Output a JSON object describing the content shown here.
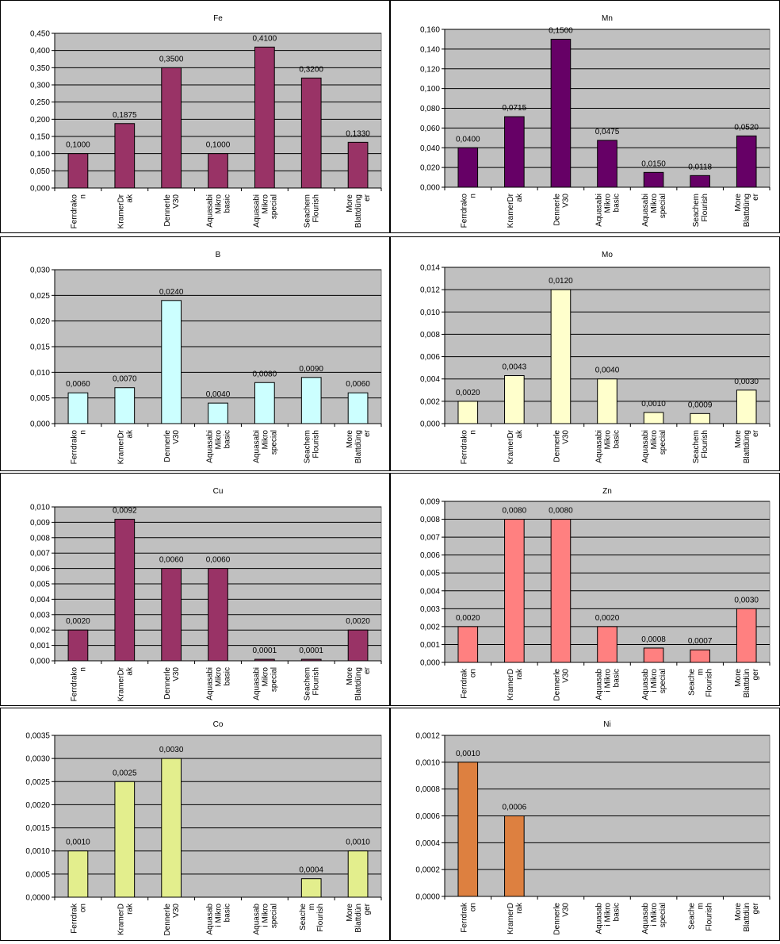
{
  "chart_data": [
    {
      "type": "bar",
      "title": "Fe",
      "categories": [
        [
          "Ferrdrako",
          "n"
        ],
        [
          "KramerDr",
          "ak"
        ],
        [
          "Dennerle",
          "V30"
        ],
        [
          "Aquasabi",
          "Mikro",
          "basic"
        ],
        [
          "Aquasabi",
          "Mikro",
          "special"
        ],
        [
          "Seachem",
          "Flourish"
        ],
        [
          "More",
          "Blattdüng",
          "er"
        ]
      ],
      "values": [
        0.1,
        0.1875,
        0.35,
        0.1,
        0.41,
        0.32,
        0.133
      ],
      "value_labels": [
        "0,1000",
        "0,1875",
        "0,3500",
        "0,1000",
        "0,4100",
        "0,3200",
        "0,1330"
      ],
      "ylim": [
        0,
        0.45
      ],
      "yticks": [
        "0,000",
        "0,050",
        "0,100",
        "0,150",
        "0,200",
        "0,250",
        "0,300",
        "0,350",
        "0,400",
        "0,450"
      ],
      "color": "#993366",
      "plot_bg": "#c0c0c0",
      "grid": true
    },
    {
      "type": "bar",
      "title": "Mn",
      "categories": [
        [
          "Ferrdrako",
          "n"
        ],
        [
          "KramerDr",
          "ak"
        ],
        [
          "Dennerle",
          "V30"
        ],
        [
          "Aquasabi",
          "Mikro",
          "basic"
        ],
        [
          "Aquasabi",
          "Mikro",
          "special"
        ],
        [
          "Seachem",
          "Flourish"
        ],
        [
          "More",
          "Blattdüng",
          "er"
        ]
      ],
      "values": [
        0.04,
        0.0715,
        0.15,
        0.0475,
        0.015,
        0.0118,
        0.052
      ],
      "value_labels": [
        "0,0400",
        "0,0715",
        "0,1500",
        "0,0475",
        "0,0150",
        "0,0118",
        "0,0520"
      ],
      "ylim": [
        0,
        0.16
      ],
      "yticks": [
        "0,000",
        "0,020",
        "0,040",
        "0,060",
        "0,080",
        "0,100",
        "0,120",
        "0,140",
        "0,160"
      ],
      "color": "#660066",
      "plot_bg": "#c0c0c0",
      "grid": true
    },
    {
      "type": "bar",
      "title": "B",
      "categories": [
        [
          "Ferrdrako",
          "n"
        ],
        [
          "KramerDr",
          "ak"
        ],
        [
          "Dennerle",
          "V30"
        ],
        [
          "Aquasabi",
          "Mikro",
          "basic"
        ],
        [
          "Aquasabi",
          "Mikro",
          "special"
        ],
        [
          "Seachem",
          "Flourish"
        ],
        [
          "More",
          "Blattdüng",
          "er"
        ]
      ],
      "values": [
        0.006,
        0.007,
        0.024,
        0.004,
        0.008,
        0.009,
        0.006
      ],
      "value_labels": [
        "0,0060",
        "0,0070",
        "0,0240",
        "0,0040",
        "0,0080",
        "0,0090",
        "0,0060"
      ],
      "ylim": [
        0,
        0.03
      ],
      "yticks": [
        "0,000",
        "0,005",
        "0,010",
        "0,015",
        "0,020",
        "0,025",
        "0,030"
      ],
      "color": "#ccffff",
      "plot_bg": "#c0c0c0",
      "grid": true
    },
    {
      "type": "bar",
      "title": "Mo",
      "categories": [
        [
          "Ferrdrako",
          "n"
        ],
        [
          "KramerDr",
          "ak"
        ],
        [
          "Dennerle",
          "V30"
        ],
        [
          "Aquasabi",
          "Mikro",
          "basic"
        ],
        [
          "Aquasabi",
          "Mikro",
          "special"
        ],
        [
          "Seachem",
          "Flourish"
        ],
        [
          "More",
          "Blattdüng",
          "er"
        ]
      ],
      "values": [
        0.002,
        0.0043,
        0.012,
        0.004,
        0.001,
        0.0009,
        0.003
      ],
      "value_labels": [
        "0,0020",
        "0,0043",
        "0,0120",
        "0,0040",
        "0,0010",
        "0,0009",
        "0,0030"
      ],
      "ylim": [
        0,
        0.014
      ],
      "yticks": [
        "0,000",
        "0,002",
        "0,004",
        "0,006",
        "0,008",
        "0,010",
        "0,012",
        "0,014"
      ],
      "color": "#ffffcc",
      "plot_bg": "#c0c0c0",
      "grid": true
    },
    {
      "type": "bar",
      "title": "Cu",
      "categories": [
        [
          "Ferrdrako",
          "n"
        ],
        [
          "KramerDr",
          "ak"
        ],
        [
          "Dennerle",
          "V30"
        ],
        [
          "Aquasabi",
          "Mikro",
          "basic"
        ],
        [
          "Aquasabi",
          "Mikro",
          "special"
        ],
        [
          "Seachem",
          "Flourish"
        ],
        [
          "More",
          "Blattdüng",
          "er"
        ]
      ],
      "values": [
        0.002,
        0.0092,
        0.006,
        0.006,
        0.0001,
        0.0001,
        0.002
      ],
      "value_labels": [
        "0,0020",
        "0,0092",
        "0,0060",
        "0,0060",
        "0,0001",
        "0,0001",
        "0,0020"
      ],
      "ylim": [
        0,
        0.01
      ],
      "yticks": [
        "0,000",
        "0,001",
        "0,002",
        "0,003",
        "0,004",
        "0,005",
        "0,006",
        "0,007",
        "0,008",
        "0,009",
        "0,010"
      ],
      "color": "#993366",
      "plot_bg": "#c0c0c0",
      "grid": true
    },
    {
      "type": "bar",
      "title": "Zn",
      "categories": [
        [
          "Ferrdrak",
          "on"
        ],
        [
          "KramerD",
          "rak"
        ],
        [
          "Dennerle",
          "V30"
        ],
        [
          "Aquasab",
          "i Mikro",
          "basic"
        ],
        [
          "Aquasab",
          "i Mikro",
          "special"
        ],
        [
          "Seache",
          "m",
          "Flourish"
        ],
        [
          "More",
          "Blattdün",
          "ger"
        ]
      ],
      "values": [
        0.002,
        0.008,
        0.008,
        0.002,
        0.0008,
        0.0007,
        0.003
      ],
      "value_labels": [
        "0,0020",
        "0,0080",
        "0,0080",
        "0,0020",
        "0,0008",
        "0,0007",
        "0,0030"
      ],
      "ylim": [
        0,
        0.009
      ],
      "yticks": [
        "0,000",
        "0,001",
        "0,002",
        "0,003",
        "0,004",
        "0,005",
        "0,006",
        "0,007",
        "0,008",
        "0,009"
      ],
      "color": "#ff8080",
      "plot_bg": "#c0c0c0",
      "grid": true
    },
    {
      "type": "bar",
      "title": "Co",
      "categories": [
        [
          "Ferrdrak",
          "on"
        ],
        [
          "KramerD",
          "rak"
        ],
        [
          "Dennerle",
          "V30"
        ],
        [
          "Aquasab",
          "i Mikro",
          "basic"
        ],
        [
          "Aquasab",
          "i Mikro",
          "special"
        ],
        [
          "Seache",
          "m",
          "Flourish"
        ],
        [
          "More",
          "Blattdün",
          "ger"
        ]
      ],
      "values": [
        0.001,
        0.0025,
        0.003,
        null,
        null,
        0.0004,
        0.001
      ],
      "value_labels": [
        "0,0010",
        "0,0025",
        "0,0030",
        "",
        "",
        "0,0004",
        "0,0010"
      ],
      "ylim": [
        0,
        0.0035
      ],
      "yticks": [
        "0,0000",
        "0,0005",
        "0,0010",
        "0,0015",
        "0,0020",
        "0,0025",
        "0,0030",
        "0,0035"
      ],
      "color": "#e3ee8d",
      "plot_bg": "#c0c0c0",
      "grid": true
    },
    {
      "type": "bar",
      "title": "Ni",
      "categories": [
        [
          "Ferrdrak",
          "on"
        ],
        [
          "KramerD",
          "rak"
        ],
        [
          "Dennerle",
          "V30"
        ],
        [
          "Aquasab",
          "i Mikro",
          "basic"
        ],
        [
          "Aquasab",
          "i Mikro",
          "special"
        ],
        [
          "Seache",
          "m",
          "Flourish"
        ],
        [
          "More",
          "Blattdün",
          "ger"
        ]
      ],
      "values": [
        0.001,
        0.0006,
        null,
        null,
        null,
        null,
        null
      ],
      "value_labels": [
        "0,0010",
        "0,0006",
        "",
        "",
        "",
        "",
        ""
      ],
      "ylim": [
        0,
        0.0012
      ],
      "yticks": [
        "0,0000",
        "0,0002",
        "0,0004",
        "0,0006",
        "0,0008",
        "0,0010",
        "0,0012"
      ],
      "color": "#dd8040",
      "plot_bg": "#c0c0c0",
      "grid": true
    }
  ]
}
